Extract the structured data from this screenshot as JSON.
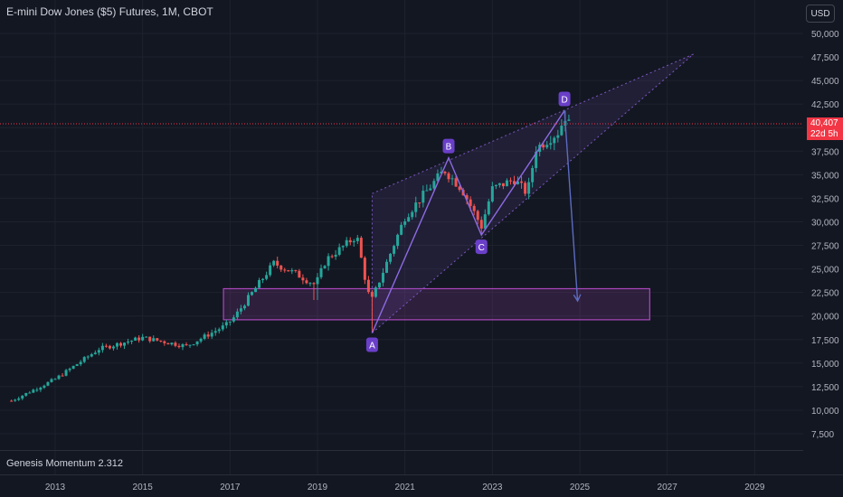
{
  "header": {
    "title": "E-mini Dow Jones ($5) Futures, 1M, CBOT",
    "currency": "USD"
  },
  "indicator": {
    "label": "Genesis Momentum 2.312"
  },
  "last_price": {
    "value": "40,407",
    "countdown": "22d 5h"
  },
  "colors": {
    "background": "#131722",
    "up": "#26a69a",
    "down": "#ef5350",
    "pattern": "#7e57c2",
    "zone": "#ab47bc",
    "price_line": "#f23645"
  },
  "chart_data": {
    "type": "candlestick",
    "title": "E-mini Dow Jones ($5) Futures, 1M, CBOT",
    "ylim": [
      5000,
      52000
    ],
    "y_ticks": [
      "7,500",
      "10,000",
      "12,500",
      "15,000",
      "17,500",
      "20,000",
      "22,500",
      "25,000",
      "27,500",
      "30,000",
      "32,500",
      "35,000",
      "37,500",
      "40,000",
      "42,500",
      "45,000",
      "47,500",
      "50,000"
    ],
    "x_ticks": [
      "2013",
      "2015",
      "2017",
      "2019",
      "2021",
      "2023",
      "2025",
      "2027",
      "2029"
    ],
    "anchors": [
      {
        "t": 2012.0,
        "p": 11000
      },
      {
        "t": 2013.0,
        "p": 13300
      },
      {
        "t": 2014.0,
        "p": 16500
      },
      {
        "t": 2015.0,
        "p": 17700
      },
      {
        "t": 2016.0,
        "p": 16800
      },
      {
        "t": 2016.9,
        "p": 19000
      },
      {
        "t": 2017.1,
        "p": 19900
      },
      {
        "t": 2018.0,
        "p": 25600
      },
      {
        "t": 2018.5,
        "p": 24500
      },
      {
        "t": 2018.95,
        "p": 23300
      },
      {
        "t": 2019.2,
        "p": 26000
      },
      {
        "t": 2019.9,
        "p": 28500
      },
      {
        "t": 2020.15,
        "p": 22500
      },
      {
        "t": 2020.25,
        "p": 21800
      },
      {
        "t": 2021.0,
        "p": 30500
      },
      {
        "t": 2021.9,
        "p": 35500
      },
      {
        "t": 2022.3,
        "p": 33500
      },
      {
        "t": 2022.75,
        "p": 29500
      },
      {
        "t": 2023.0,
        "p": 33500
      },
      {
        "t": 2023.5,
        "p": 34500
      },
      {
        "t": 2023.8,
        "p": 33000
      },
      {
        "t": 2024.0,
        "p": 37800
      },
      {
        "t": 2024.5,
        "p": 39500
      },
      {
        "t": 2024.7,
        "p": 41500
      },
      {
        "t": 2024.75,
        "p": 40400
      }
    ],
    "pattern": {
      "points": [
        {
          "label": "A",
          "t": 2020.25,
          "p": 18200
        },
        {
          "label": "B",
          "t": 2022.0,
          "p": 36800
        },
        {
          "label": "C",
          "t": 2022.75,
          "p": 28600
        },
        {
          "label": "D",
          "t": 2024.65,
          "p": 41800
        }
      ],
      "projection": {
        "t": 2024.95,
        "p": 21600
      }
    },
    "channel": {
      "lower_start": {
        "t": 2020.25,
        "p": 18200
      },
      "upper_start": {
        "t": 2020.25,
        "p": 33000
      },
      "end": {
        "t": 2027.6,
        "p": 47800
      }
    },
    "zone": {
      "t0": 2016.85,
      "t1": 2026.6,
      "p0": 19600,
      "p1": 22900
    },
    "last_value": 40407
  }
}
